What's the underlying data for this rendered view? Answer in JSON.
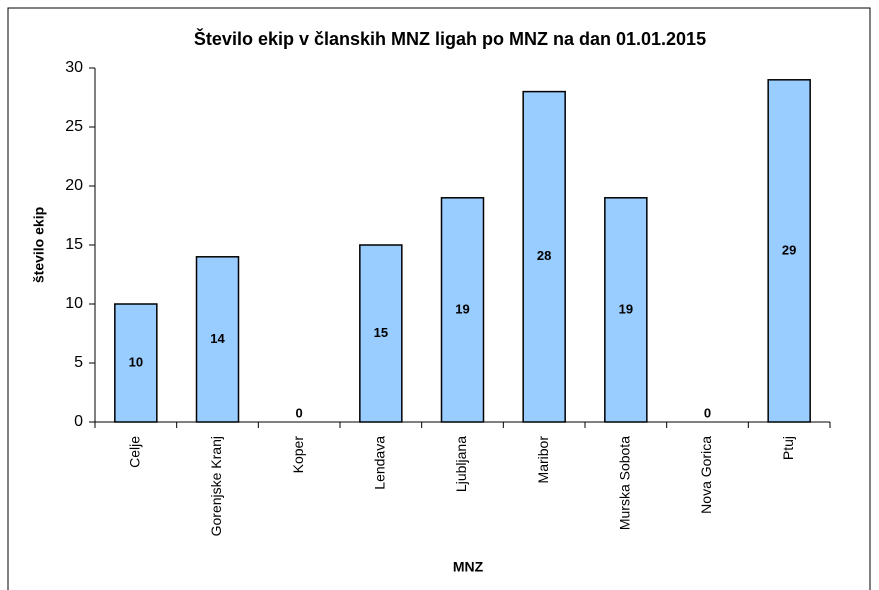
{
  "chart_data": {
    "type": "bar",
    "title": "Število ekip v članskih MNZ ligah po MNZ na dan 01.01.2015",
    "x_label": "MNZ",
    "y_label": "število ekip",
    "categories": [
      "Celje",
      "Gorenjske Kranj",
      "Koper",
      "Lendava",
      "Ljubljana",
      "Maribor",
      "Murska Sobota",
      "Nova Gorica",
      "Ptuj"
    ],
    "values": [
      10,
      14,
      0,
      15,
      19,
      28,
      19,
      0,
      29
    ],
    "color": "#99ccff",
    "ylim": [
      0,
      30
    ],
    "yticks": [
      0,
      5,
      10,
      15,
      20,
      25,
      30
    ],
    "grid": false
  }
}
